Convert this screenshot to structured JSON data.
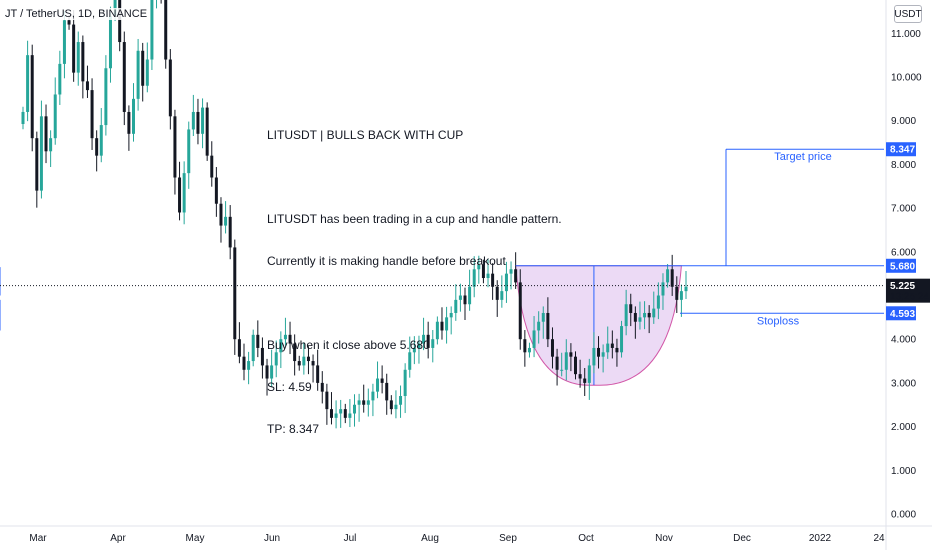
{
  "symbol_title": "JT / TetherUS, 1D, BINANCE",
  "currency": "USDT",
  "annotation": {
    "title": "LITUSDT | BULLS BACK WITH CUP",
    "line1": "LITUSDT has been trading in a cup and handle pattern.",
    "line2": "Currently it is making handle before breakout",
    "line3": "Buy when it close above 5.680",
    "line4": "SL: 4.59",
    "line5": "TP: 8.347"
  },
  "colors": {
    "up": "#26a69a",
    "down": "#131722",
    "level_line": "#2962ff",
    "cup_fill": "#e6cdf2",
    "cup_stroke": "#d257a8",
    "current_tag": "#131722"
  },
  "chart_data": {
    "type": "candlestick",
    "symbol": "LITUSDT",
    "interval": "1D",
    "exchange": "BINANCE",
    "ylim": [
      0,
      12
    ],
    "y_ticks": [
      "0.000",
      "1.000",
      "2.000",
      "3.000",
      "4.000",
      "5.000",
      "6.000",
      "7.000",
      "8.000",
      "9.000",
      "10.000",
      "11.000"
    ],
    "x_ticks": [
      "Mar",
      "Apr",
      "May",
      "Jun",
      "Jul",
      "Aug",
      "Sep",
      "Oct",
      "Nov",
      "Dec",
      "2022",
      "24"
    ],
    "closes": [
      9.2,
      10.5,
      8.6,
      7.4,
      9.1,
      8.3,
      8.6,
      9.6,
      10.3,
      11.3,
      11.2,
      10.1,
      10.8,
      9.9,
      9.7,
      8.6,
      8.2,
      8.9,
      10.2,
      11.4,
      11.8,
      10.8,
      9.2,
      8.7,
      9.5,
      10.6,
      9.8,
      10.4,
      11.9,
      12.3,
      11.8,
      10.4,
      9.1,
      7.7,
      6.9,
      7.8,
      8.8,
      9.2,
      8.7,
      9.3,
      8.2,
      7.7,
      7.1,
      6.6,
      6.8,
      6.1,
      4.0,
      3.6,
      3.3,
      3.5,
      4.1,
      3.8,
      3.4,
      3.1,
      3.4,
      3.7,
      4.0,
      4.1,
      3.9,
      3.5,
      3.4,
      3.6,
      3.5,
      3.4,
      3.0,
      2.8,
      2.4,
      2.2,
      2.3,
      2.4,
      2.2,
      2.3,
      2.5,
      2.6,
      2.5,
      2.6,
      2.8,
      3.1,
      3.0,
      2.6,
      2.4,
      2.5,
      2.7,
      3.3,
      3.7,
      3.8,
      3.9,
      4.1,
      3.8,
      4.0,
      4.4,
      4.2,
      4.5,
      4.6,
      4.9,
      5.0,
      4.8,
      5.2,
      5.6,
      5.7,
      5.4,
      5.5,
      5.2,
      4.9,
      5.1,
      5.5,
      5.6,
      5.3,
      4.0,
      3.7,
      3.8,
      4.2,
      4.4,
      4.6,
      4.0,
      3.6,
      3.3,
      3.3,
      3.7,
      3.6,
      3.2,
      3.1,
      3.0,
      3.4,
      3.8,
      3.6,
      3.7,
      3.9,
      3.8,
      3.7,
      4.3,
      4.8,
      4.6,
      4.4,
      4.5,
      4.6,
      4.5,
      4.7,
      5.0,
      5.3,
      5.6,
      5.2,
      4.9,
      5.1,
      5.2
    ],
    "last_close": 5.225,
    "countdown": "13:25:24",
    "levels": [
      {
        "label": "Target price",
        "value": 8.347,
        "tag": "8.347"
      },
      {
        "label": "",
        "value": 5.68,
        "tag": "5.680"
      },
      {
        "label": "Stoploss",
        "value": 4.593,
        "tag": "4.593"
      }
    ],
    "current_tag": "5.225"
  }
}
